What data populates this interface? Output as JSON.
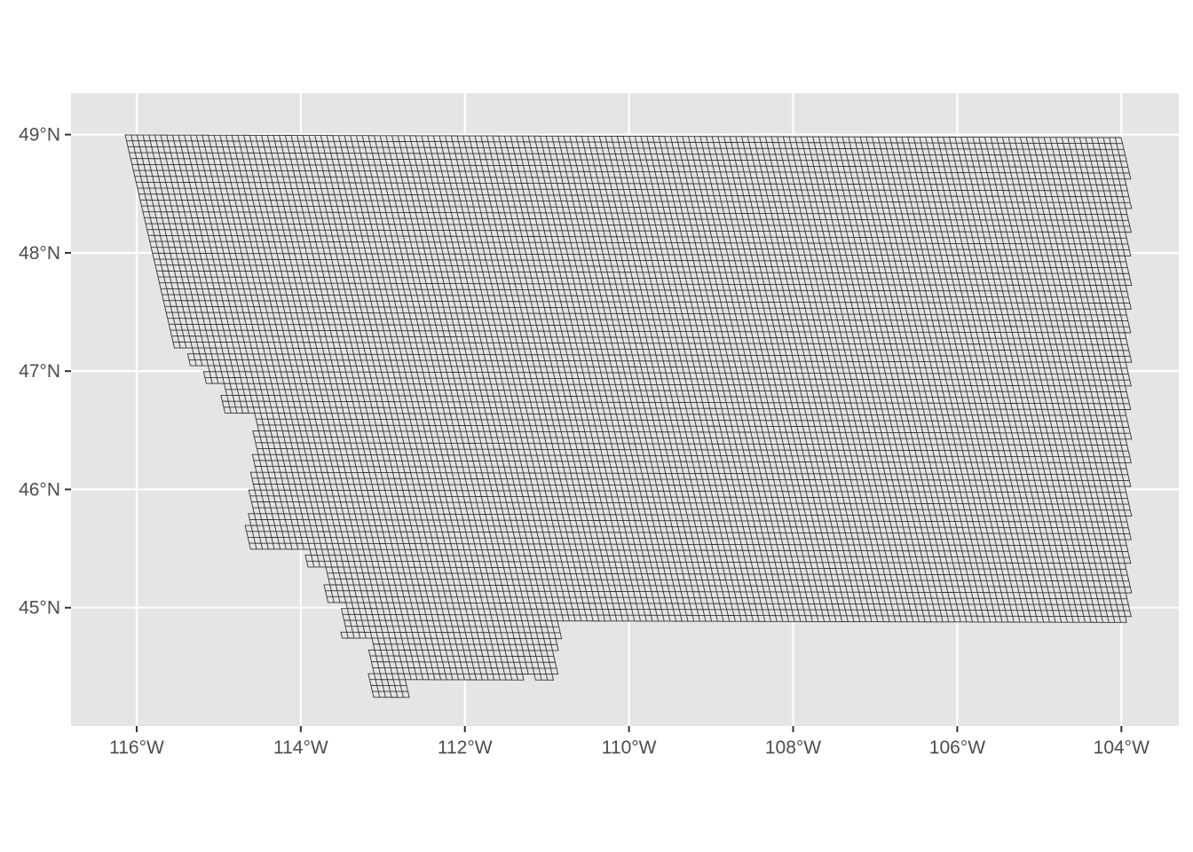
{
  "map": {
    "type": "grid-map",
    "x_ticks": [
      {
        "value": -116,
        "label": "116°W"
      },
      {
        "value": -114,
        "label": "114°W"
      },
      {
        "value": -112,
        "label": "112°W"
      },
      {
        "value": -110,
        "label": "110°W"
      },
      {
        "value": -108,
        "label": "108°W"
      },
      {
        "value": -106,
        "label": "106°W"
      },
      {
        "value": -104,
        "label": "104°W"
      }
    ],
    "y_ticks": [
      {
        "value": 49,
        "label": "49°N"
      },
      {
        "value": 48,
        "label": "48°N"
      },
      {
        "value": 47,
        "label": "47°N"
      },
      {
        "value": 46,
        "label": "46°N"
      },
      {
        "value": 45,
        "label": "45°N"
      }
    ],
    "x_range": [
      -116.8,
      -103.3
    ],
    "y_range": [
      44.0,
      49.35
    ],
    "grid": true,
    "colors": {
      "panel": "#e5e5e5",
      "gridline": "#ffffff",
      "cell_fill": "#e5e5e5",
      "cell_stroke": "#333333",
      "tick": "#333333",
      "tick_label": "#4d4d4d"
    }
  }
}
